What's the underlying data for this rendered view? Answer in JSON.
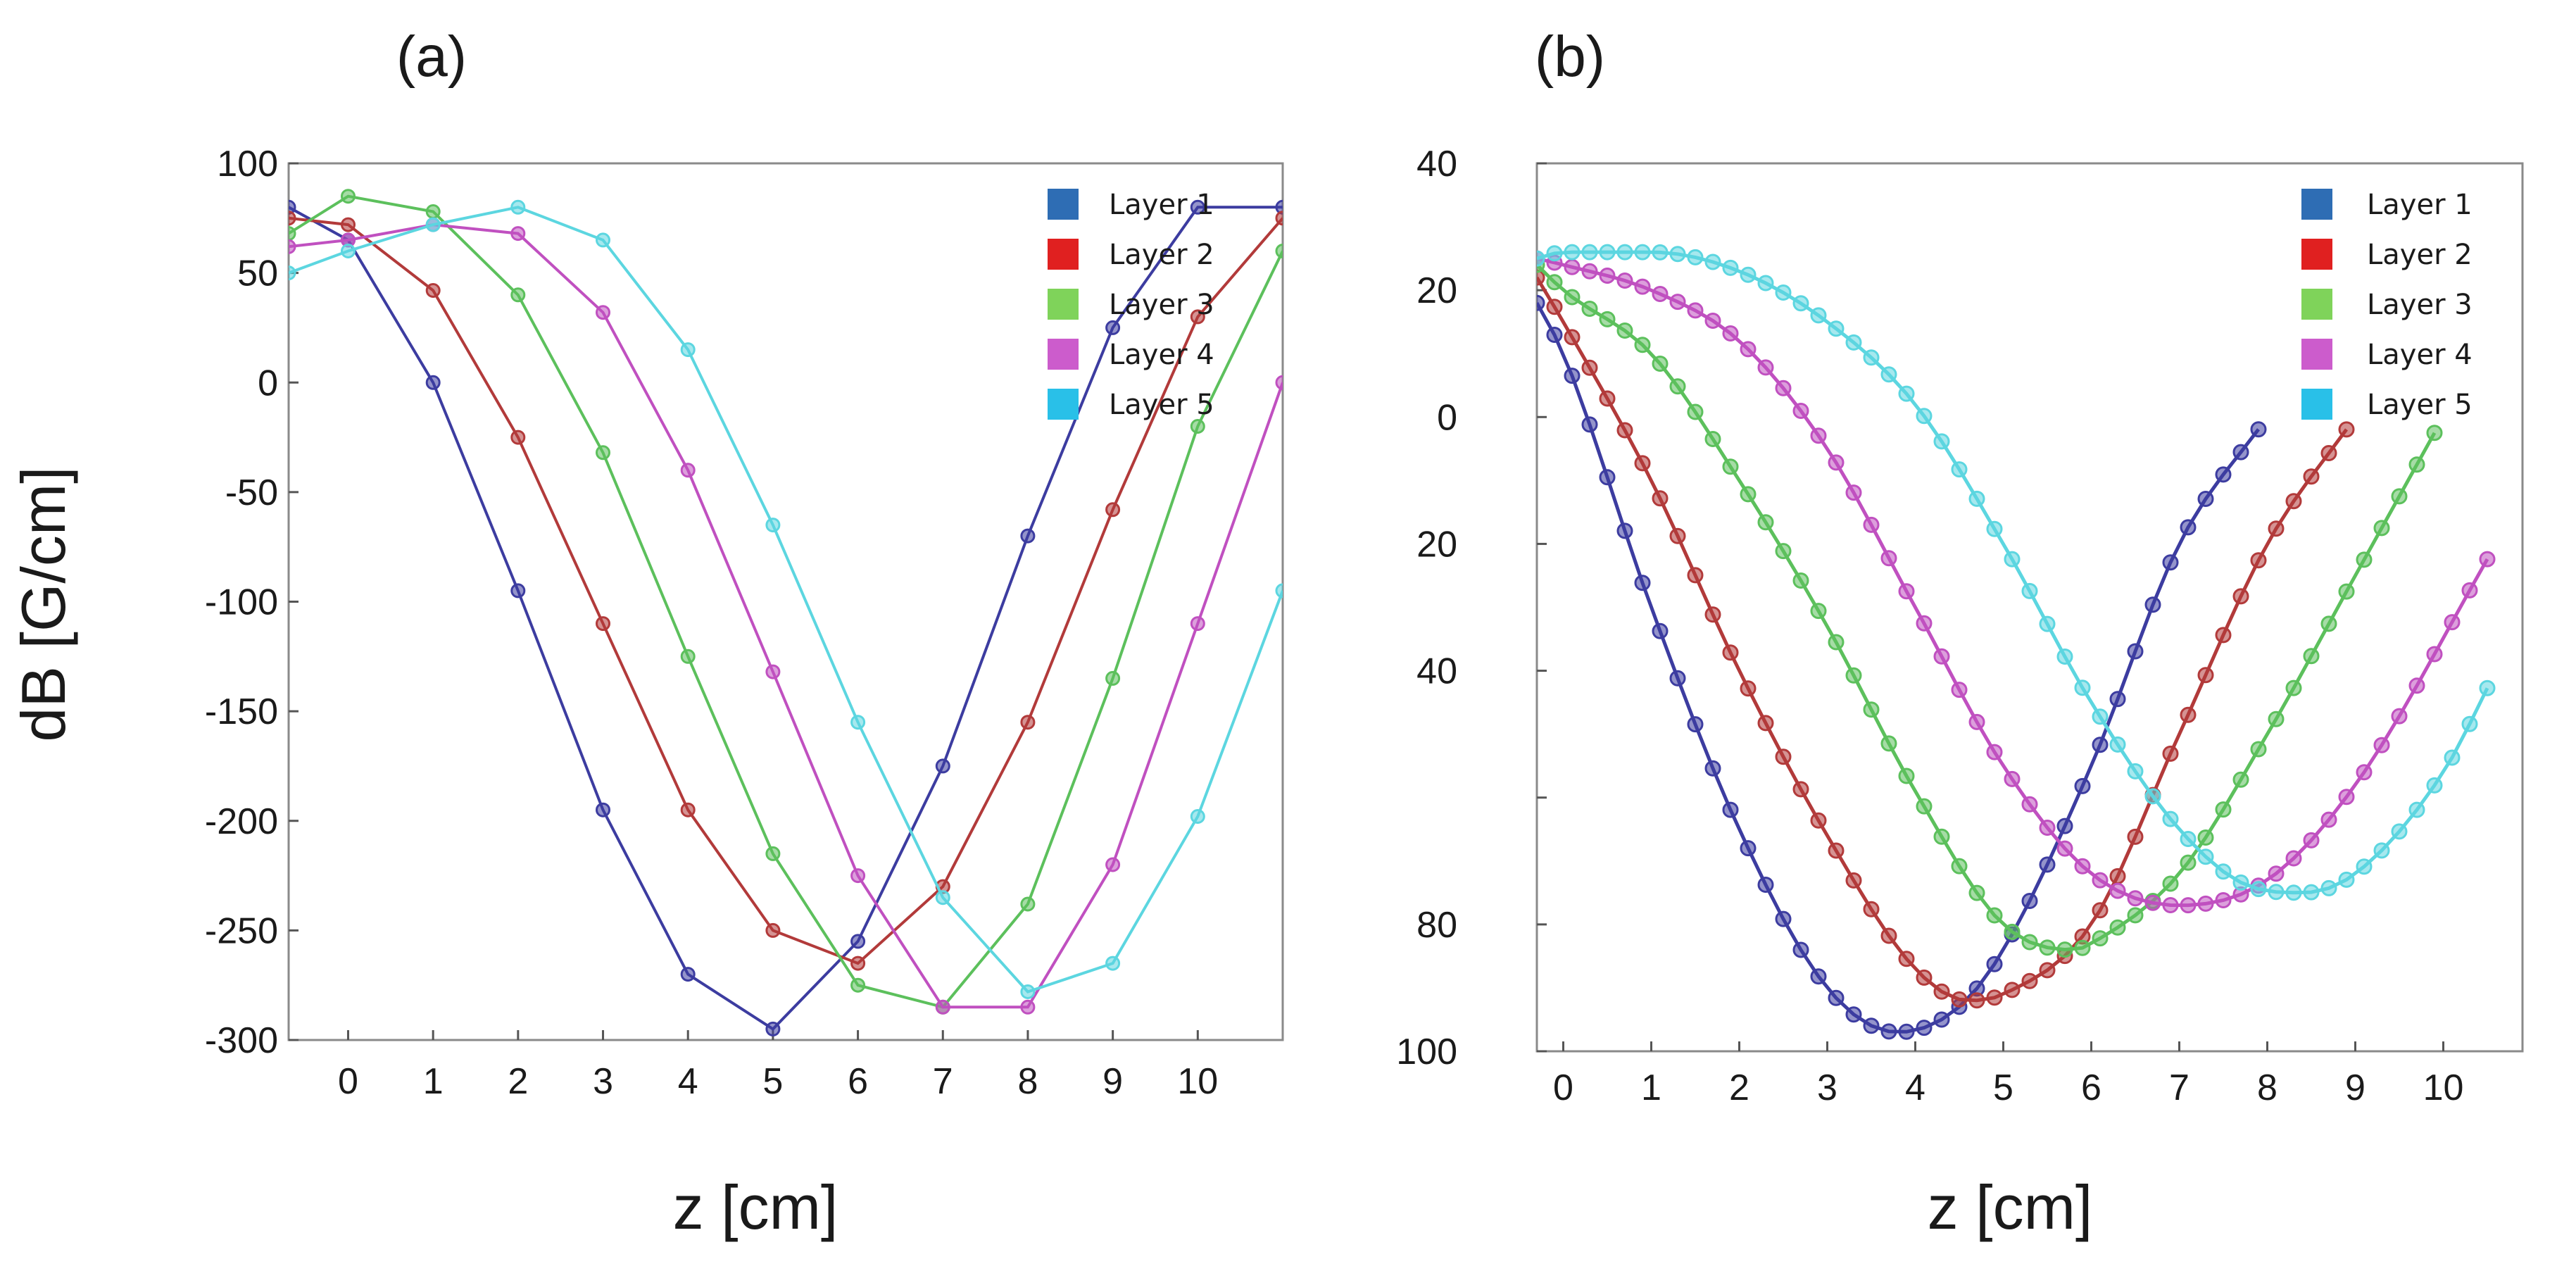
{
  "chart_data": [
    {
      "type": "line",
      "panel_label": "(a)",
      "xlabel": "z [cm]",
      "ylabel": "dB [G/cm]",
      "xlim": [
        -0.7,
        11.0
      ],
      "ylim": [
        -300,
        100
      ],
      "xticks": [
        0,
        1,
        2,
        3,
        4,
        5,
        6,
        7,
        8,
        9,
        10
      ],
      "xtick_labels": [
        "0",
        "1",
        "2",
        "3",
        "4",
        "5",
        "6",
        "7",
        "8",
        "9",
        "10"
      ],
      "yticks": [
        100,
        50,
        0,
        -50,
        -100,
        -150,
        -200,
        -250,
        -300
      ],
      "ytick_labels": [
        "100",
        "50",
        "0",
        "-50",
        "-100",
        "-150",
        "-200",
        "-250",
        "-300"
      ],
      "legend_position": "top-right",
      "grid": false,
      "series": [
        {
          "name": "Layer 1",
          "color": "#3c3ca0",
          "legend_color": "#2e6db4",
          "x": [
            -0.7,
            0,
            1,
            2,
            3,
            4,
            5,
            6,
            7,
            8,
            9,
            10,
            11
          ],
          "y": [
            80,
            65,
            0,
            -95,
            -195,
            -270,
            -295,
            -255,
            -175,
            -70,
            25,
            80,
            80
          ]
        },
        {
          "name": "Layer 2",
          "color": "#b23a3a",
          "legend_color": "#e02020",
          "x": [
            -0.7,
            0,
            1,
            2,
            3,
            4,
            5,
            6,
            7,
            8,
            9,
            10,
            11
          ],
          "y": [
            75,
            72,
            42,
            -25,
            -110,
            -195,
            -250,
            -265,
            -230,
            -155,
            -58,
            30,
            75
          ]
        },
        {
          "name": "Layer 3",
          "color": "#5cc05c",
          "legend_color": "#7fd35a",
          "x": [
            -0.7,
            0,
            1,
            2,
            3,
            4,
            5,
            6,
            7,
            8,
            9,
            10,
            11
          ],
          "y": [
            68,
            85,
            78,
            40,
            -32,
            -125,
            -215,
            -275,
            -285,
            -238,
            -135,
            -20,
            60
          ]
        },
        {
          "name": "Layer 4",
          "color": "#c050c0",
          "legend_color": "#cc5ccc",
          "x": [
            -0.7,
            0,
            1,
            2,
            3,
            4,
            5,
            6,
            7,
            8,
            9,
            10,
            11
          ],
          "y": [
            62,
            65,
            72,
            68,
            32,
            -40,
            -132,
            -225,
            -285,
            -285,
            -220,
            -110,
            0
          ]
        },
        {
          "name": "Layer 5",
          "color": "#5cd6e0",
          "legend_color": "#29c0e8",
          "x": [
            -0.7,
            0,
            1,
            2,
            3,
            4,
            5,
            6,
            7,
            8,
            9,
            10,
            11
          ],
          "y": [
            50,
            60,
            72,
            80,
            65,
            15,
            -65,
            -155,
            -235,
            -278,
            -265,
            -198,
            -95
          ]
        }
      ]
    },
    {
      "type": "line",
      "panel_label": "(b)",
      "xlabel": "z [cm]",
      "ylabel": "",
      "xlim": [
        -0.3,
        10.9
      ],
      "ylim": [
        -100,
        40
      ],
      "xticks": [
        0,
        1,
        2,
        3,
        4,
        5,
        6,
        7,
        8,
        9,
        10
      ],
      "xtick_labels": [
        "0",
        "1",
        "2",
        "3",
        "4",
        "5",
        "6",
        "7",
        "8",
        "9",
        "10"
      ],
      "yticks": [
        40,
        20,
        0,
        -20,
        -40,
        -60,
        -80,
        -100
      ],
      "ytick_labels": [
        "40",
        "20",
        "0",
        "20",
        "40",
        "",
        "80",
        "100"
      ],
      "legend_position": "top-right",
      "grid": false,
      "series": [
        {
          "name": "Layer 1",
          "color": "#3c3ca0",
          "legend_color": "#2e6db4",
          "x": [
            -0.3,
            0,
            1,
            2,
            3,
            3.8,
            4.5,
            5,
            6,
            7,
            8
          ],
          "y": [
            18,
            10,
            -30,
            -65,
            -90,
            -97,
            -93,
            -84,
            -55,
            -20,
            0
          ]
        },
        {
          "name": "Layer 2",
          "color": "#b23a3a",
          "legend_color": "#e02020",
          "x": [
            -0.3,
            0,
            1,
            2,
            3,
            4,
            4.6,
            5,
            6,
            7,
            8,
            9
          ],
          "y": [
            22,
            15,
            -10,
            -40,
            -66,
            -87,
            -92,
            -91,
            -80,
            -50,
            -20,
            0
          ]
        },
        {
          "name": "Layer 3",
          "color": "#5cc05c",
          "legend_color": "#7fd35a",
          "x": [
            -0.3,
            0,
            1,
            2,
            3,
            4,
            5,
            5.8,
            6,
            7,
            8,
            9,
            10
          ],
          "y": [
            24,
            20,
            10,
            -10,
            -33,
            -59,
            -80,
            -84,
            -83,
            -72,
            -50,
            -25,
            0
          ]
        },
        {
          "name": "Layer 4",
          "color": "#c050c0",
          "legend_color": "#cc5ccc",
          "x": [
            -0.3,
            0,
            1,
            2,
            3,
            4,
            5,
            6,
            7,
            8,
            9,
            10.6
          ],
          "y": [
            25,
            24,
            20,
            12,
            -5,
            -30,
            -55,
            -72,
            -77,
            -73,
            -58,
            -20
          ]
        },
        {
          "name": "Layer 5",
          "color": "#5cd6e0",
          "legend_color": "#29c0e8",
          "x": [
            -0.3,
            0,
            1,
            2,
            3,
            4,
            5,
            6,
            7,
            7.8,
            8.4,
            9,
            10,
            10.6
          ],
          "y": [
            25,
            26,
            26,
            23,
            15,
            2,
            -20,
            -45,
            -65,
            -74,
            -75,
            -72,
            -56,
            -40
          ]
        }
      ]
    }
  ]
}
